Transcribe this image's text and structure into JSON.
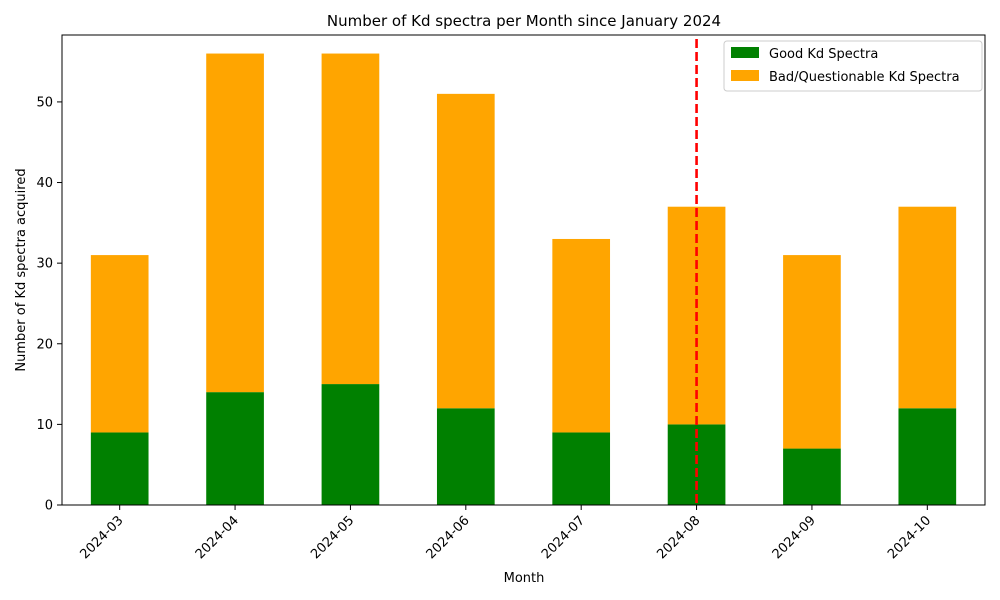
{
  "chart_data": {
    "type": "bar",
    "stacked": true,
    "title": "Number of Kd spectra per Month since January 2024",
    "xlabel": "Month",
    "ylabel": "Number of Kd spectra acquired",
    "categories": [
      "2024-03",
      "2024-04",
      "2024-05",
      "2024-06",
      "2024-07",
      "2024-08",
      "2024-09",
      "2024-10"
    ],
    "series": [
      {
        "name": "Good Kd Spectra",
        "color": "#008000",
        "values": [
          9,
          14,
          15,
          12,
          9,
          10,
          7,
          12
        ]
      },
      {
        "name": "Bad/Questionable Kd Spectra",
        "color": "#FFA500",
        "values": [
          22,
          42,
          41,
          39,
          24,
          27,
          24,
          25
        ]
      }
    ],
    "ylim": [
      0,
      58.3
    ],
    "yticks": [
      0,
      10,
      20,
      30,
      40,
      50
    ],
    "vline": {
      "category": "2024-08",
      "color": "#FF0000",
      "style": "dashed"
    },
    "legend_position": "top-right"
  }
}
